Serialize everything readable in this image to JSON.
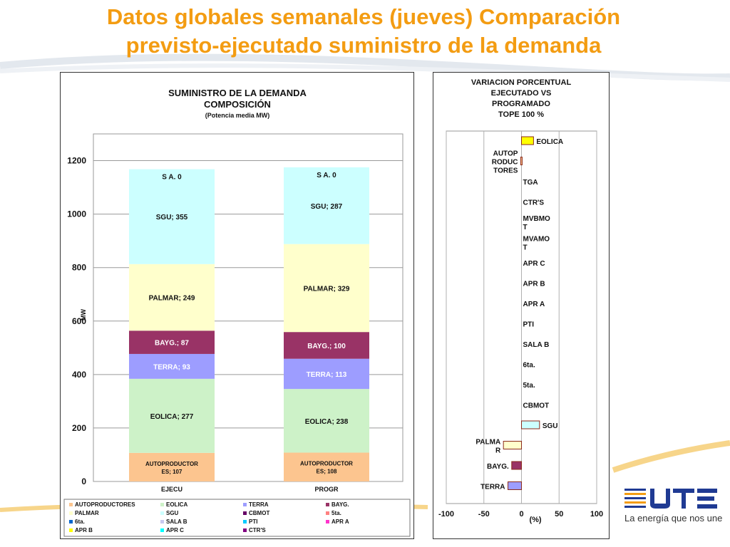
{
  "slide": {
    "title_line1": "Datos globales semanales  (jueves) Comparación",
    "title_line2": "previsto-ejecutado suministro de la demanda"
  },
  "logo": {
    "tagline": "La energía que nos une",
    "colors": {
      "primary": "#1f3a93",
      "accent": "#f39c12"
    }
  },
  "chart_data": [
    {
      "type": "stacked-bar",
      "title": "SUMINISTRO DE LA DEMANDA",
      "title_line2": "COMPOSICIÓN",
      "subtitle": "(Potencia media MW)",
      "ylabel": "MW",
      "ylim": [
        0,
        1300
      ],
      "yticks": [
        0,
        200,
        400,
        600,
        800,
        1000,
        1200
      ],
      "grid": true,
      "categories": [
        "EJECU",
        "PROGR"
      ],
      "series": [
        {
          "name": "AUTOPRODUCTORES",
          "label": "AUTOPRODUCTORES",
          "values": [
            107,
            108
          ],
          "color": "#fcc58f"
        },
        {
          "name": "EOLICA",
          "label": "EOLICA",
          "values": [
            277,
            238
          ],
          "color": "#cdf2c8"
        },
        {
          "name": "TERRA",
          "label": "TERRA",
          "values": [
            93,
            113
          ],
          "color": "#9d9dff"
        },
        {
          "name": "BAYG.",
          "label": "BAYG.",
          "values": [
            87,
            100
          ],
          "color": "#993366"
        },
        {
          "name": "PALMAR",
          "label": "PALMAR",
          "values": [
            249,
            329
          ],
          "color": "#ffffcc"
        },
        {
          "name": "SGU",
          "label": "SGU",
          "values": [
            355,
            287
          ],
          "color": "#ccffff"
        },
        {
          "name": "SALA B",
          "label": "S A.",
          "values": [
            0,
            0
          ],
          "color": "#c9c9f0"
        }
      ],
      "legend": {
        "placement": "bottom",
        "entries": [
          {
            "name": "AUTOPRODUCTORES",
            "color": "#fcc58f"
          },
          {
            "name": "EOLICA",
            "color": "#cdf2c8"
          },
          {
            "name": "TERRA",
            "color": "#9d9dff"
          },
          {
            "name": "BAYG.",
            "color": "#993366"
          },
          {
            "name": "PALMAR",
            "color": "#ffffcc"
          },
          {
            "name": "SGU",
            "color": "#ccffff"
          },
          {
            "name": "CBMOT",
            "color": "#660066"
          },
          {
            "name": "5ta.",
            "color": "#ff8080"
          },
          {
            "name": "6ta.",
            "color": "#0066cc"
          },
          {
            "name": "SALA B",
            "color": "#c9c9f0"
          },
          {
            "name": "PTI",
            "color": "#00ccff"
          },
          {
            "name": "APR A",
            "color": "#ff33cc"
          },
          {
            "name": "APR B",
            "color": "#ffff00"
          },
          {
            "name": "APR C",
            "color": "#00ffff"
          },
          {
            "name": "CTR'S",
            "color": "#800080"
          }
        ]
      }
    },
    {
      "type": "horizontal-bar",
      "title_lines": [
        "VARIACION  PORCENTUAL",
        "EJECUTADO  VS",
        "PROGRAMADO",
        "TOPE 100 %"
      ],
      "xlabel": "(%)",
      "xlim": [
        -100,
        100
      ],
      "xticks": [
        -100,
        -50,
        0,
        50,
        100
      ],
      "grid": true,
      "bars": [
        {
          "label": "EOLICA",
          "value": 16,
          "color": "#ffff00"
        },
        {
          "label": "AUTOP RODUC TORES",
          "label_lines": [
            "AUTOP",
            "RODUC",
            "TORES"
          ],
          "value": -1,
          "color": "#fcc58f"
        },
        {
          "label": "TGA",
          "value": 0,
          "color": "#cccccc"
        },
        {
          "label": "CTR'S",
          "value": 0,
          "color": "#800080"
        },
        {
          "label": "MVBMOT",
          "label_lines": [
            "MVBMO",
            "T"
          ],
          "value": 0,
          "color": "#cccccc"
        },
        {
          "label": "MVAMOT",
          "label_lines": [
            "MVAMO",
            "T"
          ],
          "value": 0,
          "color": "#cccccc"
        },
        {
          "label": "APR C",
          "value": 0,
          "color": "#00ffff"
        },
        {
          "label": "APR B",
          "value": 0,
          "color": "#ffff00"
        },
        {
          "label": "APR A",
          "value": 0,
          "color": "#ff33cc"
        },
        {
          "label": "PTI",
          "value": 0,
          "color": "#00ccff"
        },
        {
          "label": "SALA B",
          "value": 0,
          "color": "#c9c9f0"
        },
        {
          "label": "6ta.",
          "value": 0,
          "color": "#0066cc"
        },
        {
          "label": "5ta.",
          "value": 0,
          "color": "#ff8080"
        },
        {
          "label": "CBMOT",
          "value": 0,
          "color": "#660066"
        },
        {
          "label": "SGU",
          "value": 24,
          "color": "#ccffff"
        },
        {
          "label": "PALMAR",
          "label_lines": [
            "PALMA",
            "R"
          ],
          "value": -24,
          "color": "#ffffcc"
        },
        {
          "label": "BAYG.",
          "value": -13,
          "color": "#993366"
        },
        {
          "label": "TERRA",
          "value": -18,
          "color": "#9d9dff"
        }
      ]
    }
  ]
}
